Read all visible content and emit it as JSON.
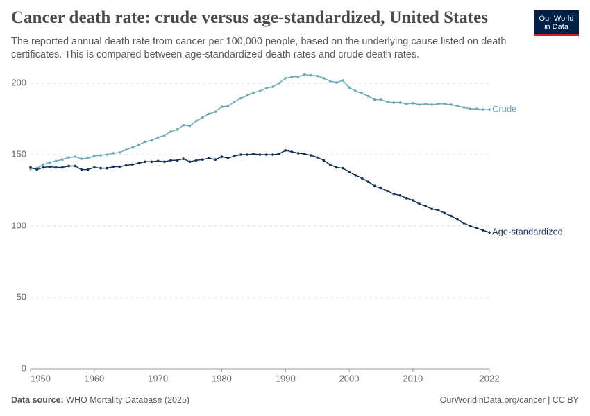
{
  "chart_data": {
    "type": "line",
    "title": "Cancer death rate: crude versus age-standardized, United States",
    "subtitle": "The reported annual death rate from cancer per 100,000 people, based on the underlying cause listed on death certificates. This is compared between age-standardized death rates and crude death rates.",
    "x": [
      1950,
      1951,
      1952,
      1953,
      1954,
      1955,
      1956,
      1957,
      1958,
      1959,
      1960,
      1961,
      1962,
      1963,
      1964,
      1965,
      1966,
      1967,
      1968,
      1969,
      1970,
      1971,
      1972,
      1973,
      1974,
      1975,
      1976,
      1977,
      1978,
      1979,
      1980,
      1981,
      1982,
      1983,
      1984,
      1985,
      1986,
      1987,
      1988,
      1989,
      1990,
      1991,
      1992,
      1993,
      1994,
      1995,
      1996,
      1997,
      1998,
      1999,
      2000,
      2001,
      2002,
      2003,
      2004,
      2005,
      2006,
      2007,
      2008,
      2009,
      2010,
      2011,
      2012,
      2013,
      2014,
      2015,
      2016,
      2017,
      2018,
      2019,
      2020,
      2021,
      2022
    ],
    "series": [
      {
        "name": "Crude",
        "color": "#6aaab9",
        "values": [
          140,
          140.5,
          143,
          144.5,
          145.5,
          146.5,
          148,
          148.5,
          147,
          147.5,
          149,
          149.5,
          150,
          151,
          151.5,
          153.5,
          155,
          157,
          159,
          160,
          162,
          163.5,
          166,
          167.5,
          170.5,
          170,
          173.5,
          176,
          178.5,
          180,
          183.5,
          184,
          187,
          189.5,
          191.5,
          193.5,
          194.5,
          196.5,
          197.5,
          200,
          203.5,
          204.5,
          204.5,
          206,
          205.5,
          205,
          203.5,
          201.5,
          200.5,
          202,
          197,
          194.5,
          193,
          191,
          188.5,
          188.5,
          187,
          186.5,
          186.5,
          185.5,
          186,
          185,
          185.5,
          185,
          185.5,
          185.5,
          185,
          184,
          183,
          182,
          182,
          181.5,
          181.5
        ]
      },
      {
        "name": "Age-standardized",
        "color": "#14325c",
        "values": [
          141,
          139.5,
          141,
          141.5,
          141,
          141,
          142,
          142,
          139.5,
          139.5,
          141,
          140.5,
          140.5,
          141.5,
          141.5,
          142.5,
          143,
          144,
          145,
          145,
          145.5,
          145,
          146,
          146,
          147,
          145,
          146,
          146.5,
          147.5,
          146.5,
          148.5,
          147.5,
          149,
          150,
          150,
          150.5,
          150,
          150,
          150,
          150.5,
          153,
          152,
          151,
          150.5,
          149.5,
          148,
          146,
          143,
          141,
          140.5,
          138,
          135.5,
          133.5,
          131,
          128,
          126.5,
          124.5,
          122.5,
          121.5,
          119.5,
          118,
          115.5,
          114,
          112,
          111,
          109,
          107,
          104.5,
          102,
          100,
          98.5,
          97,
          95.5
        ]
      }
    ],
    "xlim": [
      1950,
      2022
    ],
    "xticks": [
      1950,
      1960,
      1970,
      1980,
      1990,
      2000,
      2010,
      2022
    ],
    "ylim": [
      0,
      200
    ],
    "yticks": [
      0,
      50,
      100,
      150,
      200
    ],
    "grid": true
  },
  "logo": {
    "line1": "Our World",
    "line2": "in Data"
  },
  "footer": {
    "source_label": "Data source:",
    "source": "WHO Mortality Database (2025)",
    "credit": "OurWorldinData.org/cancer | CC BY"
  }
}
